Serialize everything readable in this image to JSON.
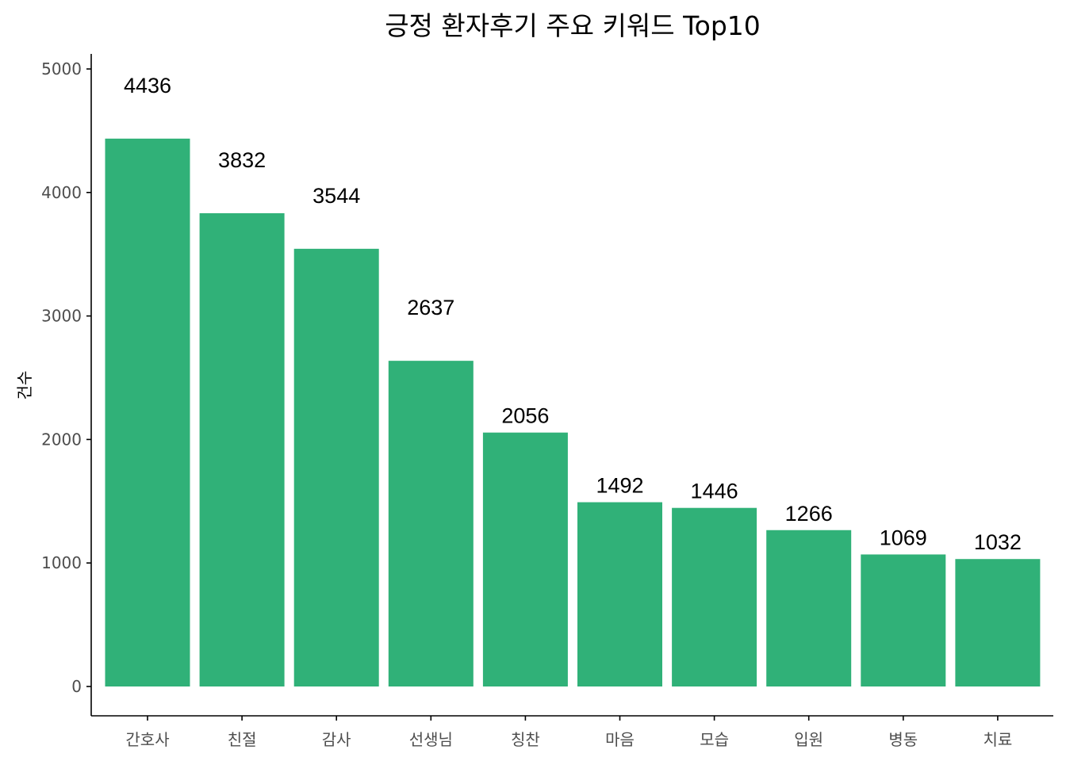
{
  "chart_data": {
    "type": "bar",
    "title": "긍정 환자후기 주요 키워드 Top10",
    "xlabel": "",
    "ylabel": "건수",
    "categories": [
      "간호사",
      "친절",
      "감사",
      "선생님",
      "칭찬",
      "마음",
      "모습",
      "입원",
      "병동",
      "치료"
    ],
    "values": [
      4436,
      3832,
      3544,
      2637,
      2056,
      1492,
      1446,
      1266,
      1069,
      1032
    ],
    "ylim": [
      0,
      5000
    ],
    "yticks": [
      0,
      1000,
      2000,
      3000,
      4000,
      5000
    ],
    "grid": false,
    "legend": "none",
    "colors": {
      "bar": "#30B178",
      "axis": "#000000",
      "tick_text": "#4d4d4d"
    }
  }
}
